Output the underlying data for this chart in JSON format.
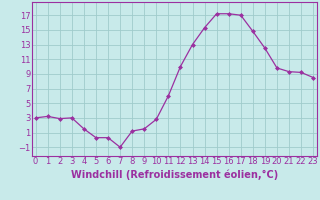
{
  "x": [
    0,
    1,
    2,
    3,
    4,
    5,
    6,
    7,
    8,
    9,
    10,
    11,
    12,
    13,
    14,
    15,
    16,
    17,
    18,
    19,
    20,
    21,
    22,
    23
  ],
  "y": [
    3,
    3.2,
    2.9,
    3.0,
    1.5,
    0.3,
    0.3,
    -1.0,
    1.2,
    1.5,
    2.8,
    6.0,
    10.0,
    13.0,
    15.3,
    17.2,
    17.2,
    17.0,
    14.8,
    12.5,
    9.8,
    9.3,
    9.2,
    8.5
  ],
  "line_color": "#9B30A0",
  "marker": "D",
  "marker_size": 2,
  "bg_color": "#c8eaea",
  "grid_color": "#a0cccc",
  "xlabel": "Windchill (Refroidissement éolien,°C)",
  "xlabel_fontsize": 7,
  "yticks": [
    -1,
    1,
    3,
    5,
    7,
    9,
    11,
    13,
    15,
    17
  ],
  "xticks": [
    0,
    1,
    2,
    3,
    4,
    5,
    6,
    7,
    8,
    9,
    10,
    11,
    12,
    13,
    14,
    15,
    16,
    17,
    18,
    19,
    20,
    21,
    22,
    23
  ],
  "ylim": [
    -2.2,
    18.8
  ],
  "xlim": [
    -0.3,
    23.3
  ],
  "tick_fontsize": 6
}
